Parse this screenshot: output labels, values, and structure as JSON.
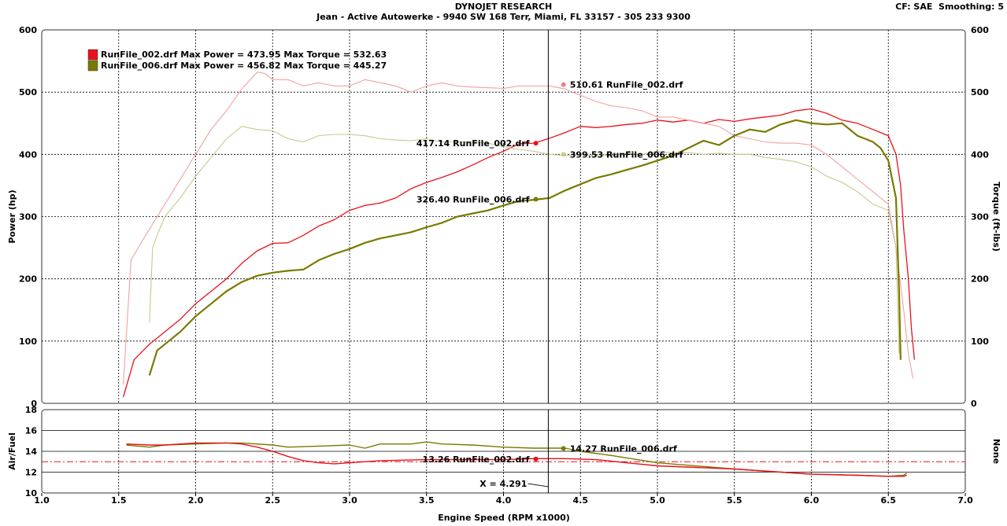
{
  "header": {
    "title": "DYNOJET RESEARCH",
    "subtitle": "Jean - Active Autowerke - 9940 SW 168 Terr, Miami, FL 33157 - 305 233 9300",
    "correction": "CF: SAE",
    "smoothing": "Smoothing: 5"
  },
  "chart_data": [
    {
      "type": "line",
      "xlabel": "Engine Speed (RPM x1000)",
      "ylabel": "Power (hp)",
      "y2label": "Torque (ft-lbs)",
      "xlim": [
        1.0,
        7.0
      ],
      "ylim": [
        0,
        600
      ],
      "y2lim": [
        0,
        600
      ],
      "x_ticks": [
        "1.0",
        "1.5",
        "2.0",
        "2.5",
        "3.0",
        "3.5",
        "4.0",
        "4.5",
        "5.0",
        "5.5",
        "6.0",
        "6.5",
        "7.0"
      ],
      "y_ticks": [
        "0",
        "100",
        "200",
        "300",
        "400",
        "500",
        "600"
      ],
      "grid": true,
      "legend_position": "top-left",
      "legend": [
        {
          "text": "RunFile_002.drf Max Power = 473.95 Max Torque = 532.63",
          "color": "#e8121c"
        },
        {
          "text": "RunFile_006.drf Max Power = 456.82 Max Torque = 445.27",
          "color": "#7a7a00"
        }
      ],
      "cursor_x": 4.291,
      "series": [
        {
          "name": "RunFile_002.drf",
          "measure": "power",
          "color": "#e8121c",
          "x": [
            1.53,
            1.6,
            1.7,
            1.8,
            1.9,
            2.0,
            2.1,
            2.2,
            2.3,
            2.4,
            2.5,
            2.6,
            2.7,
            2.8,
            2.9,
            3.0,
            3.1,
            3.2,
            3.3,
            3.4,
            3.5,
            3.6,
            3.7,
            3.8,
            3.9,
            4.0,
            4.1,
            4.2,
            4.3,
            4.4,
            4.5,
            4.6,
            4.7,
            4.8,
            4.9,
            5.0,
            5.1,
            5.2,
            5.3,
            5.4,
            5.5,
            5.6,
            5.7,
            5.8,
            5.9,
            6.0,
            6.1,
            6.2,
            6.3,
            6.4,
            6.45,
            6.5,
            6.55,
            6.58,
            6.6,
            6.63,
            6.65,
            6.67
          ],
          "y": [
            10,
            70,
            95,
            115,
            135,
            160,
            180,
            200,
            225,
            245,
            257,
            258,
            270,
            285,
            295,
            310,
            318,
            322,
            330,
            345,
            355,
            363,
            372,
            383,
            395,
            405,
            417,
            418,
            426,
            435,
            445,
            443,
            445,
            448,
            450,
            455,
            452,
            455,
            450,
            456,
            453,
            457,
            460,
            463,
            470,
            473,
            466,
            455,
            450,
            440,
            435,
            430,
            400,
            350,
            280,
            200,
            120,
            70
          ]
        },
        {
          "name": "RunFile_002.drf",
          "measure": "torque",
          "color": "#f5a0a0",
          "x": [
            1.53,
            1.58,
            1.65,
            1.75,
            1.85,
            2.0,
            2.1,
            2.2,
            2.3,
            2.4,
            2.45,
            2.5,
            2.6,
            2.7,
            2.8,
            2.9,
            3.0,
            3.1,
            3.2,
            3.3,
            3.4,
            3.5,
            3.6,
            3.7,
            3.8,
            3.9,
            4.0,
            4.1,
            4.2,
            4.3,
            4.4,
            4.5,
            4.6,
            4.7,
            4.8,
            4.9,
            5.0,
            5.1,
            5.2,
            5.3,
            5.4,
            5.5,
            5.6,
            5.7,
            5.8,
            5.9,
            6.0,
            6.1,
            6.2,
            6.3,
            6.4,
            6.5,
            6.55,
            6.6,
            6.63,
            6.66
          ],
          "y": [
            30,
            230,
            260,
            300,
            340,
            400,
            440,
            470,
            505,
            532,
            530,
            520,
            520,
            510,
            515,
            510,
            510,
            520,
            515,
            510,
            500,
            510,
            515,
            510,
            508,
            507,
            506,
            510,
            510,
            510,
            505,
            495,
            485,
            478,
            475,
            470,
            460,
            460,
            455,
            450,
            445,
            430,
            425,
            420,
            418,
            418,
            415,
            400,
            380,
            360,
            340,
            320,
            250,
            150,
            80,
            40
          ]
        },
        {
          "name": "RunFile_006.drf",
          "measure": "power",
          "color": "#7a7a00",
          "x": [
            1.7,
            1.75,
            1.8,
            1.9,
            2.0,
            2.1,
            2.2,
            2.3,
            2.4,
            2.5,
            2.6,
            2.7,
            2.8,
            2.9,
            3.0,
            3.1,
            3.2,
            3.3,
            3.4,
            3.5,
            3.6,
            3.7,
            3.8,
            3.9,
            4.0,
            4.1,
            4.2,
            4.3,
            4.4,
            4.5,
            4.6,
            4.7,
            4.8,
            4.9,
            5.0,
            5.1,
            5.2,
            5.3,
            5.4,
            5.5,
            5.6,
            5.7,
            5.8,
            5.9,
            6.0,
            6.1,
            6.2,
            6.3,
            6.4,
            6.45,
            6.5,
            6.55,
            6.57,
            6.58
          ],
          "y": [
            45,
            85,
            95,
            115,
            140,
            160,
            180,
            195,
            205,
            210,
            213,
            215,
            230,
            240,
            248,
            258,
            265,
            270,
            275,
            283,
            290,
            300,
            305,
            310,
            318,
            325,
            327,
            330,
            342,
            352,
            362,
            368,
            375,
            382,
            390,
            398,
            410,
            422,
            415,
            430,
            440,
            436,
            448,
            455,
            450,
            448,
            450,
            430,
            420,
            410,
            390,
            330,
            180,
            70
          ]
        },
        {
          "name": "RunFile_006.drf",
          "measure": "torque",
          "color": "#c8c890",
          "x": [
            1.7,
            1.72,
            1.75,
            1.8,
            1.9,
            2.0,
            2.1,
            2.2,
            2.3,
            2.4,
            2.5,
            2.6,
            2.7,
            2.8,
            2.9,
            3.0,
            3.1,
            3.2,
            3.3,
            3.4,
            3.5,
            3.6,
            3.7,
            3.8,
            3.9,
            4.0,
            4.1,
            4.2,
            4.3,
            4.4,
            4.5,
            4.6,
            4.7,
            4.8,
            4.9,
            5.0,
            5.1,
            5.2,
            5.3,
            5.4,
            5.5,
            5.6,
            5.7,
            5.8,
            5.9,
            6.0,
            6.1,
            6.2,
            6.3,
            6.4,
            6.5,
            6.55,
            6.57
          ],
          "y": [
            130,
            250,
            270,
            300,
            330,
            365,
            395,
            425,
            445,
            440,
            438,
            425,
            420,
            430,
            432,
            432,
            430,
            425,
            423,
            422,
            425,
            420,
            420,
            420,
            418,
            412,
            408,
            405,
            400,
            398,
            400,
            398,
            398,
            402,
            400,
            405,
            402,
            403,
            400,
            402,
            400,
            400,
            395,
            392,
            388,
            380,
            365,
            355,
            340,
            320,
            310,
            250,
            80
          ]
        }
      ],
      "annotations": [
        {
          "text": "510.61 RunFile_002.drf",
          "x": 4.39,
          "y": 512
        },
        {
          "text": "417.14 RunFile_002.drf",
          "x": 4.21,
          "y": 418
        },
        {
          "text": "399.53 RunFile_006.drf",
          "x": 4.39,
          "y": 400
        },
        {
          "text": "326.40 RunFile_006.drf",
          "x": 4.21,
          "y": 328
        }
      ]
    },
    {
      "type": "line",
      "xlabel": "Engine Speed (RPM x1000)",
      "ylabel": "Air/Fuel",
      "y2label": "None",
      "xlim": [
        1.0,
        7.0
      ],
      "ylim": [
        10,
        18
      ],
      "y_ticks": [
        "10",
        "12",
        "14",
        "16",
        "18"
      ],
      "grid": true,
      "reference_line": 13.0,
      "cursor_x": 4.291,
      "series": [
        {
          "name": "RunFile_006.drf",
          "color": "#7a7a00",
          "x": [
            1.55,
            1.7,
            1.8,
            2.0,
            2.2,
            2.3,
            2.5,
            2.6,
            2.8,
            3.0,
            3.1,
            3.2,
            3.4,
            3.5,
            3.6,
            3.8,
            4.0,
            4.2,
            4.4,
            4.5,
            4.7,
            5.0,
            5.5,
            6.0,
            6.3,
            6.5,
            6.6,
            6.62
          ],
          "y": [
            14.6,
            14.4,
            14.6,
            14.7,
            14.8,
            14.8,
            14.6,
            14.4,
            14.5,
            14.6,
            14.3,
            14.7,
            14.7,
            14.9,
            14.7,
            14.6,
            14.4,
            14.3,
            14.3,
            14.0,
            13.6,
            12.9,
            12.3,
            11.8,
            11.7,
            11.6,
            11.7,
            11.9
          ]
        },
        {
          "name": "RunFile_002.drf",
          "color": "#e8121c",
          "x": [
            1.55,
            1.7,
            1.8,
            2.0,
            2.2,
            2.3,
            2.4,
            2.5,
            2.6,
            2.7,
            2.8,
            2.9,
            3.0,
            3.2,
            3.5,
            3.8,
            4.0,
            4.2,
            4.4,
            4.6,
            4.8,
            5.0,
            5.5,
            6.0,
            6.3,
            6.5,
            6.6,
            6.62
          ],
          "y": [
            14.7,
            14.6,
            14.6,
            14.8,
            14.8,
            14.7,
            14.4,
            14.0,
            13.5,
            13.1,
            12.9,
            12.8,
            12.9,
            13.1,
            13.2,
            13.2,
            13.2,
            13.3,
            13.3,
            13.2,
            12.9,
            12.6,
            12.3,
            11.8,
            11.7,
            11.6,
            11.6,
            11.7
          ]
        }
      ],
      "annotations": [
        {
          "text": "14.27 RunFile_006.drf",
          "x": 4.39,
          "y": 14.27
        },
        {
          "text": "13.26 RunFile_002.drf",
          "x": 4.21,
          "y": 13.26
        },
        {
          "text": "X = 4.291",
          "x": 4.291,
          "y": 10.9
        }
      ]
    }
  ]
}
